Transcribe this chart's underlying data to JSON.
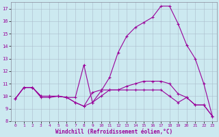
{
  "xlabel": "Windchill (Refroidissement éolien,°C)",
  "xlim": [
    -0.5,
    23.5
  ],
  "ylim": [
    8,
    17.5
  ],
  "xticks": [
    0,
    1,
    2,
    3,
    4,
    5,
    6,
    7,
    8,
    9,
    10,
    11,
    12,
    13,
    14,
    15,
    16,
    17,
    18,
    19,
    20,
    21,
    22,
    23
  ],
  "yticks": [
    8,
    9,
    10,
    11,
    12,
    13,
    14,
    15,
    16,
    17
  ],
  "bg_color": "#cce9f0",
  "line_color": "#990099",
  "grid_color": "#aabccc",
  "lines": [
    {
      "x": [
        0,
        1,
        2,
        3,
        4,
        5,
        6,
        7,
        8,
        9,
        10,
        11,
        12,
        13,
        14,
        15,
        16,
        17,
        18,
        19,
        20,
        21,
        22,
        23
      ],
      "y": [
        9.8,
        10.7,
        10.7,
        10.0,
        10.0,
        10.0,
        9.9,
        9.5,
        9.2,
        10.3,
        10.5,
        10.5,
        10.5,
        10.8,
        11.0,
        11.2,
        11.2,
        11.2,
        11.0,
        10.2,
        9.9,
        9.3,
        9.3,
        8.4
      ]
    },
    {
      "x": [
        0,
        1,
        2,
        3,
        4,
        5,
        6,
        7,
        8,
        9,
        10,
        11,
        12,
        13,
        14,
        15,
        16,
        17,
        18,
        19,
        20,
        21,
        22,
        23
      ],
      "y": [
        9.8,
        10.7,
        10.7,
        9.9,
        9.9,
        10.0,
        9.9,
        9.9,
        12.5,
        9.5,
        10.4,
        11.5,
        13.5,
        14.8,
        15.5,
        15.9,
        16.3,
        17.2,
        17.2,
        15.8,
        14.1,
        13.0,
        11.0,
        8.4
      ]
    },
    {
      "x": [
        0,
        1,
        2,
        3,
        4,
        5,
        6,
        7,
        8,
        9,
        10,
        11,
        12,
        13,
        14,
        15,
        16,
        17,
        18,
        19,
        20,
        21,
        22,
        23
      ],
      "y": [
        9.8,
        10.7,
        10.7,
        10.0,
        10.0,
        10.0,
        9.9,
        9.5,
        9.2,
        9.5,
        10.0,
        10.5,
        10.5,
        10.5,
        10.5,
        10.5,
        10.5,
        10.5,
        10.0,
        9.5,
        9.9,
        9.3,
        9.3,
        8.4
      ]
    }
  ]
}
